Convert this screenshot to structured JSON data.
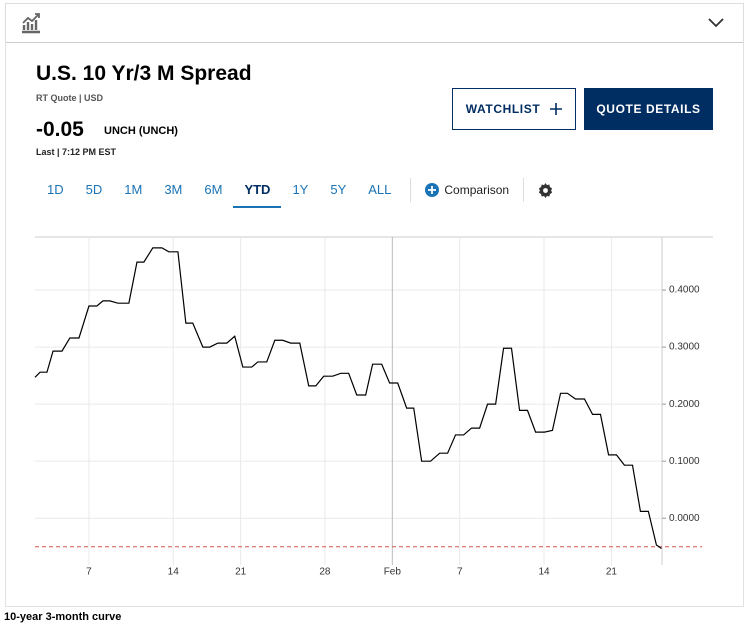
{
  "header": {
    "title": "U.S. 10 Yr/3 M Spread",
    "source": "RT Quote | USD",
    "last": "-0.05",
    "change": "UNCH (UNCH)",
    "time": "Last | 7:12 PM EST"
  },
  "buttons": {
    "watchlist": "WATCHLIST",
    "quote_details": "QUOTE DETAILS"
  },
  "tabs": [
    "1D",
    "5D",
    "1M",
    "3M",
    "6M",
    "YTD",
    "1Y",
    "5Y",
    "ALL"
  ],
  "active_tab": "YTD",
  "comparison": "Comparison",
  "footer": "10-year 3-month curve",
  "chart_data": {
    "type": "line",
    "color": "#000000",
    "grid": true,
    "x": [
      -0.2,
      0.1,
      0.51,
      0.87,
      1.4,
      1.87,
      2.41,
      3,
      3.47,
      3.83,
      4.24,
      4.72,
      5.37,
      5.85,
      6.26,
      6.79,
      7.33,
      7.74,
      8.28,
      8.75,
      9.16,
      9.76,
      10.17,
      10.65,
      11.18,
      11.65,
      12.13,
      12.66,
      13.02,
      13.55,
      14.03,
      14.5,
      14.97,
      15.51,
      16.04,
      16.46,
      16.93,
      17.46,
      17.94,
      18.41,
      18.89,
      19.42,
      19.83,
      20.37,
      20.84,
      21.32,
      21.85,
      22.27,
      22.74,
      23.27,
      23.81,
      24.28,
      24.75,
      25.23,
      25.7,
      26.18,
      26.65,
      27.13,
      27.6,
      28.07,
      28.55,
      29.02,
      29.5,
      30.03,
      30.5,
      30.98,
      31.39,
      31.87,
      32.4,
      32.88,
      33.35,
      33.83,
      34.3,
      34.77,
      35.25,
      35.72,
      36.19,
      36.67,
      36.97
    ],
    "values": [
      0.247,
      0.256,
      0.256,
      0.293,
      0.293,
      0.316,
      0.316,
      0.372,
      0.372,
      0.381,
      0.381,
      0.377,
      0.377,
      0.449,
      0.449,
      0.474,
      0.474,
      0.467,
      0.467,
      0.342,
      0.342,
      0.3,
      0.3,
      0.307,
      0.307,
      0.319,
      0.265,
      0.265,
      0.274,
      0.274,
      0.312,
      0.312,
      0.307,
      0.307,
      0.232,
      0.232,
      0.249,
      0.249,
      0.254,
      0.254,
      0.216,
      0.216,
      0.27,
      0.27,
      0.237,
      0.237,
      0.193,
      0.193,
      0.1,
      0.1,
      0.114,
      0.114,
      0.146,
      0.146,
      0.158,
      0.158,
      0.2,
      0.2,
      0.298,
      0.298,
      0.189,
      0.189,
      0.151,
      0.151,
      0.154,
      0.219,
      0.219,
      0.209,
      0.209,
      0.182,
      0.182,
      0.111,
      0.111,
      0.093,
      0.093,
      0.012,
      0.012,
      -0.047,
      -0.053
    ],
    "xlim": [
      -0.2,
      37
    ],
    "xticks": [
      {
        "value": 3,
        "label": "7"
      },
      {
        "value": 8,
        "label": "14"
      },
      {
        "value": 12,
        "label": "21"
      },
      {
        "value": 17,
        "label": "28"
      },
      {
        "value": 21,
        "label": "Feb"
      },
      {
        "value": 25,
        "label": "7"
      },
      {
        "value": 30,
        "label": "14"
      },
      {
        "value": 34,
        "label": "21"
      }
    ],
    "ylim": [
      -0.082,
      0.493
    ],
    "yticks": [
      {
        "value": 0,
        "label": "0.0000"
      },
      {
        "value": 0.1,
        "label": "0.1000"
      },
      {
        "value": 0.2,
        "label": "0.2000"
      },
      {
        "value": 0.3,
        "label": "0.3000"
      },
      {
        "value": 0.4,
        "label": "0.4000"
      }
    ],
    "reference_line": {
      "value": -0.05,
      "color": "#d9534f"
    }
  }
}
